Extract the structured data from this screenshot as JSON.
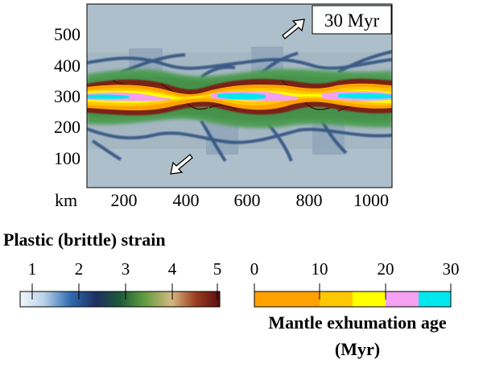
{
  "map": {
    "time_label": "30 Myr",
    "x_unit_label": "km",
    "x_ticks": [
      "200",
      "400",
      "600",
      "800",
      "1000"
    ],
    "y_ticks": [
      "500",
      "400",
      "300",
      "200",
      "100"
    ],
    "arrow_icons": [
      "arrow-northeast-icon",
      "arrow-southwest-icon"
    ]
  },
  "strain_legend": {
    "title": "Plastic (brittle) strain",
    "ticks": [
      "1",
      "2",
      "3",
      "4",
      "5"
    ],
    "colormap": [
      "#f2f6fa",
      "#b9d3ea",
      "#2f6db0",
      "#1d2f63",
      "#1d5a3a",
      "#5f9c3c",
      "#d7b880",
      "#9a3d20",
      "#5a0f0f"
    ]
  },
  "age_legend": {
    "title_line1": "Mantle exhumation age",
    "title_line2": "(Myr)",
    "ticks": [
      "0",
      "10",
      "20",
      "30"
    ],
    "bins": [
      "#ffa200",
      "#ffc800",
      "#ffff00",
      "#f5a0f0",
      "#00e8ee"
    ]
  },
  "colors": {
    "background": "#a6b7c4",
    "green_zone": "#4f9d55",
    "dark_blue": "#294e7d"
  }
}
